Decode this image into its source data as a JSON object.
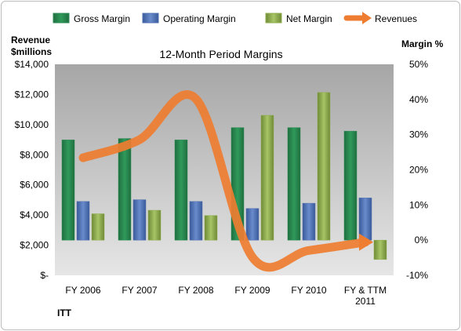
{
  "chart_data": {
    "type": "bar",
    "title": "12-Month Period Margins",
    "company": "ITT",
    "categories": [
      "FY 2006",
      "FY 2007",
      "FY 2008",
      "FY 2009",
      "FY 2010",
      "FY & TTM 2011"
    ],
    "left_axis": {
      "label_line1": "Revenue",
      "label_line2": "$millions",
      "ylim": [
        0,
        14000
      ],
      "ticks": [
        0,
        2000,
        4000,
        6000,
        8000,
        10000,
        12000,
        14000
      ],
      "tick_labels": [
        "$-",
        "$2,000",
        "$4,000",
        "$6,000",
        "$8,000",
        "$10,000",
        "$12,000",
        "$14,000"
      ]
    },
    "right_axis": {
      "label": "Margin %",
      "ylim": [
        -10,
        50
      ],
      "ticks": [
        -10,
        0,
        10,
        20,
        30,
        40,
        50
      ],
      "tick_labels": [
        "-10%",
        "0%",
        "10%",
        "20%",
        "30%",
        "40%",
        "50%"
      ]
    },
    "series": [
      {
        "name": "Gross Margin",
        "kind": "bar",
        "axis": "right",
        "color": "#2e8b57",
        "values": [
          28.5,
          28.9,
          28.5,
          32.0,
          32.0,
          31.0
        ]
      },
      {
        "name": "Operating Margin",
        "kind": "bar",
        "axis": "right",
        "color": "#4f6fb0",
        "values": [
          11.0,
          11.5,
          11.0,
          9.0,
          10.5,
          12.0
        ]
      },
      {
        "name": "Net Margin",
        "kind": "bar",
        "axis": "right",
        "color": "#8fad4f",
        "values": [
          7.5,
          8.5,
          7.0,
          35.5,
          42.0,
          -5.5
        ]
      },
      {
        "name": "Revenues",
        "kind": "line",
        "axis": "left",
        "color": "#ee7d31",
        "values": [
          7800,
          9000,
          11700,
          1200,
          1650,
          2200
        ]
      }
    ],
    "legend_position": "top",
    "grid": false
  }
}
